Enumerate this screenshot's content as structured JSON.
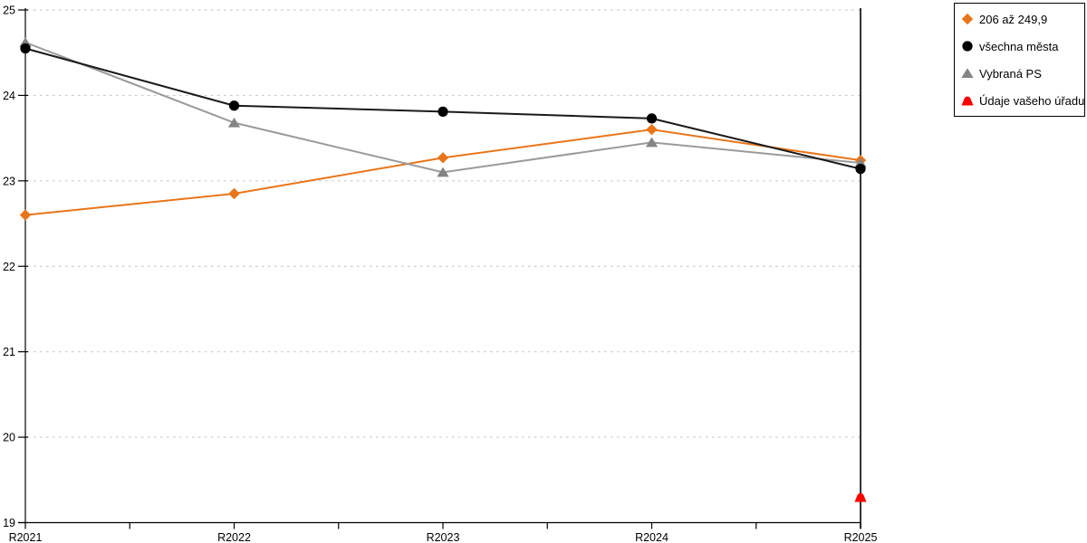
{
  "chart_data": {
    "type": "line",
    "categories": [
      "R2021",
      "R2022",
      "R2023",
      "R2024",
      "R2025"
    ],
    "yticks": [
      19,
      20,
      21,
      22,
      23,
      24,
      25
    ],
    "ylim": [
      19,
      25
    ],
    "grid": "dotted-horizontal",
    "legend_position": "top-right-outside",
    "colors": {
      "grid": "#c9c9c9",
      "axis": "#000000",
      "background": "#ffffff"
    },
    "series": [
      {
        "name": "206 až 249,9",
        "marker": "diamond",
        "color": "#e8751a",
        "marker_color": "#e8751a",
        "z": 1,
        "values": [
          22.6,
          22.85,
          23.27,
          23.6,
          23.24
        ]
      },
      {
        "name": "všechna města",
        "marker": "circle",
        "color": "#1a1a1a",
        "marker_color": "#000000",
        "z": 3,
        "values": [
          24.55,
          23.88,
          23.81,
          23.73,
          23.14
        ]
      },
      {
        "name": "Vybraná PS",
        "marker": "triangle",
        "color": "#9a9a9a",
        "marker_color": "#848484",
        "z": 2,
        "values": [
          24.62,
          23.68,
          23.1,
          23.45,
          23.21
        ]
      },
      {
        "name": "Údaje vašeho úřadu",
        "marker": "rounded-triangle",
        "color": "#ff0000",
        "marker_color": "#ff0000",
        "z": 4,
        "values": [
          null,
          null,
          null,
          null,
          19.3
        ]
      }
    ]
  }
}
